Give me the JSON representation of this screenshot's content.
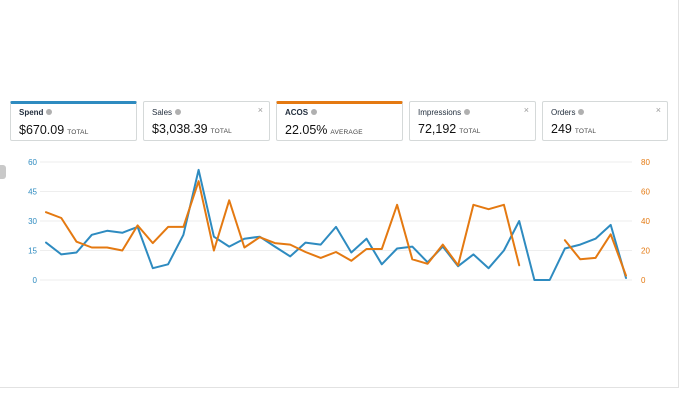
{
  "cards": [
    {
      "id": "spend",
      "title": "Spend",
      "value": "$670.09",
      "sub": "TOTAL",
      "selected": "blue"
    },
    {
      "id": "sales",
      "title": "Sales",
      "value": "$3,038.39",
      "sub": "TOTAL"
    },
    {
      "id": "acos",
      "title": "ACOS",
      "value": "22.05%",
      "sub": "AVERAGE",
      "selected": "orange"
    },
    {
      "id": "impressions",
      "title": "Impressions",
      "value": "72,192",
      "sub": "TOTAL"
    },
    {
      "id": "orders",
      "title": "Orders",
      "value": "249",
      "sub": "TOTAL"
    }
  ],
  "close_glyph": "×",
  "chart_data": {
    "type": "line",
    "left_axis": {
      "ticks": [
        "0",
        "15",
        "30",
        "45",
        "60"
      ],
      "range": [
        0,
        60
      ],
      "color": "#2e8bc0"
    },
    "right_axis": {
      "ticks": [
        "0",
        "20",
        "40",
        "60",
        "80"
      ],
      "range": [
        0,
        80
      ],
      "color": "#e47911"
    },
    "grid": true,
    "series": [
      {
        "axis": "left",
        "color": "#2e8bc0",
        "values": [
          19,
          13,
          14,
          23,
          25,
          24,
          27,
          6,
          8,
          23,
          56,
          22,
          17,
          21,
          22,
          17,
          12,
          19,
          18,
          27,
          14,
          21,
          8,
          16,
          17,
          9,
          17,
          7,
          13,
          6,
          15,
          30,
          0,
          0,
          16,
          18,
          21,
          28,
          1
        ]
      },
      {
        "axis": "right",
        "color": "#e47911",
        "values": [
          46,
          42,
          26,
          22,
          22,
          20,
          37,
          25,
          36,
          36,
          67,
          20,
          54,
          22,
          29,
          25,
          24,
          19,
          15,
          19,
          13,
          21,
          21,
          51,
          14,
          11,
          24,
          10,
          51,
          48,
          51,
          10,
          null,
          null,
          27,
          14,
          15,
          31,
          3
        ]
      }
    ]
  }
}
